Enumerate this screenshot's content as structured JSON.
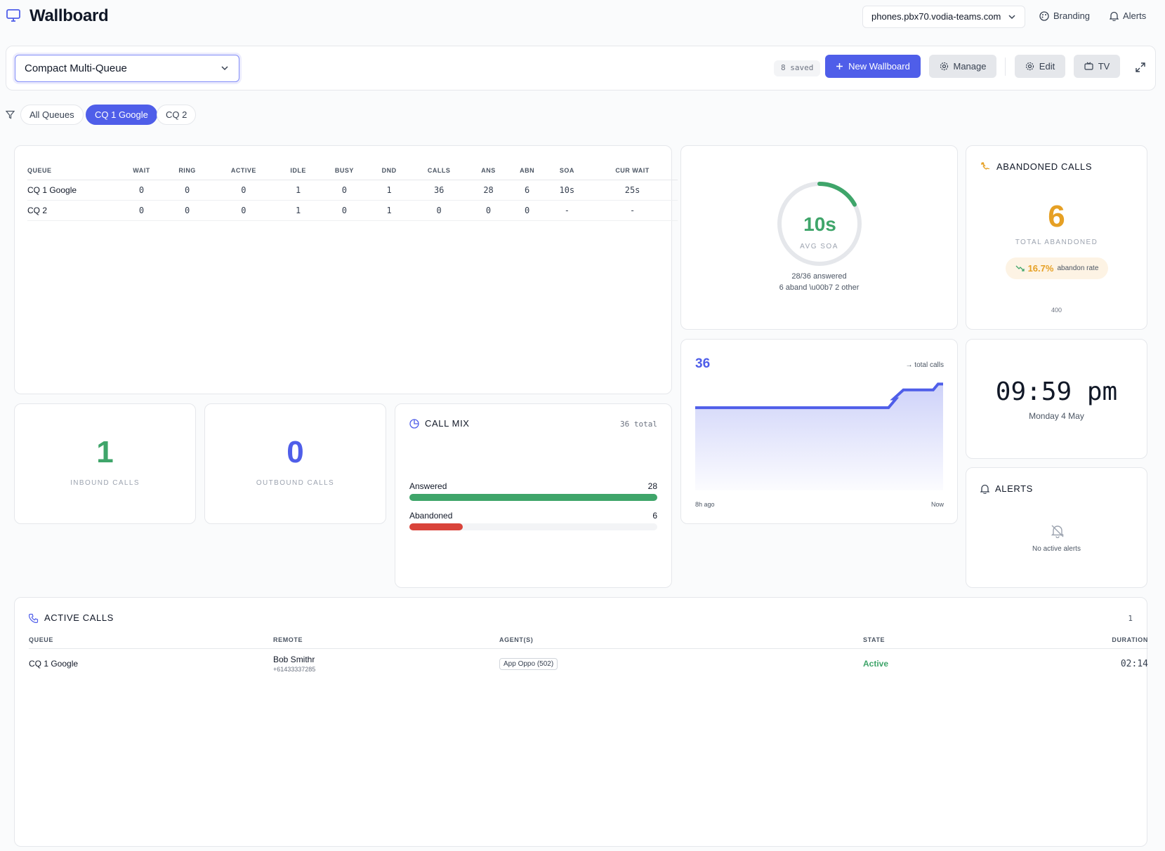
{
  "app": {
    "title": "Wallboard",
    "server": "phones.pbx70.vodia-teams.com",
    "branding_label": "Branding",
    "alerts_label": "Alerts"
  },
  "toolbar": {
    "selected_wallboard": "Compact Multi-Queue",
    "saved": "8 saved",
    "new_label": "New Wallboard",
    "manage_label": "Manage",
    "edit_label": "Edit",
    "tv_label": "TV"
  },
  "filters": [
    "All Queues",
    "CQ 1 Google",
    "CQ 2"
  ],
  "queue_table": {
    "headers": [
      "QUEUE",
      "WAIT",
      "RING",
      "ACTIVE",
      "IDLE",
      "BUSY",
      "DND",
      "CALLS",
      "ANS",
      "ABN",
      "SOA",
      "CUR WAIT"
    ],
    "rows": [
      [
        "CQ 1 Google",
        "0",
        "0",
        "0",
        "1",
        "0",
        "1",
        "36",
        "28",
        "6",
        "10s",
        "25s"
      ],
      [
        "CQ 2",
        "0",
        "0",
        "0",
        "1",
        "0",
        "1",
        "0",
        "0",
        "0",
        "-",
        "-"
      ]
    ]
  },
  "soa": {
    "value": "10s",
    "label": "AVG SOA",
    "line1": "28/36 answered",
    "line2": "6 aband \\u00b7 2 other",
    "progress": 0.17,
    "color": "#3fa56a"
  },
  "abandoned": {
    "title": "ABANDONED CALLS",
    "value": "6",
    "label": "TOTAL ABANDONED",
    "rate": "16.7%",
    "rate_label": "abandon rate",
    "footer": "400",
    "color": "#e6a024"
  },
  "inbound": {
    "value": "1",
    "label": "INBOUND CALLS",
    "color": "#3fa56a"
  },
  "outbound": {
    "value": "0",
    "label": "OUTBOUND CALLS",
    "color": "#4f5ee9"
  },
  "call_mix": {
    "title": "CALL MIX",
    "total": "36 total",
    "items": [
      {
        "label": "Answered",
        "value": "28",
        "fraction": 1.0,
        "color": "#3fa56a"
      },
      {
        "label": "Abandoned",
        "value": "6",
        "fraction": 0.214,
        "color": "#d9433a"
      }
    ]
  },
  "total_calls_chart": {
    "value": "36",
    "caption": "→ total calls",
    "x_start": "8h ago",
    "x_end": "Now"
  },
  "chart_data": {
    "type": "area",
    "x": [
      0,
      0.78,
      0.81,
      0.8,
      0.84,
      0.96,
      0.98,
      1.0
    ],
    "values": [
      28,
      28,
      31,
      31,
      34,
      34,
      36,
      36
    ],
    "ylim": [
      0,
      38
    ],
    "xlabel": "",
    "ylabel": ""
  },
  "clock": {
    "time": "09:59 pm",
    "date": "Monday 4 May"
  },
  "alerts": {
    "title": "ALERTS",
    "empty": "No active alerts"
  },
  "active_calls": {
    "title": "ACTIVE CALLS",
    "count": "1",
    "headers": [
      "QUEUE",
      "REMOTE",
      "AGENT(S)",
      "STATE",
      "DURATION"
    ],
    "rows": [
      {
        "queue": "CQ 1 Google",
        "remote_name": "Bob Smithr",
        "remote_number": "+61433337285",
        "agent": "App Oppo (502)",
        "state": "Active",
        "duration": "02:14"
      }
    ]
  },
  "colors": {
    "accent": "#4f5ee9",
    "green": "#3fa56a",
    "red": "#d9433a",
    "orange": "#e6a024"
  }
}
